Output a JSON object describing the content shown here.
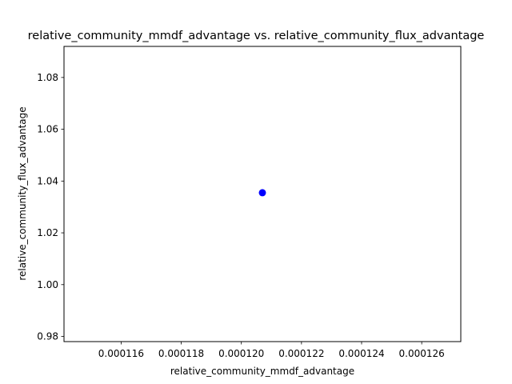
{
  "chart_data": {
    "type": "scatter",
    "title": "relative_community_mmdf_advantage vs. relative_community_flux_advantage",
    "xlabel": "relative_community_mmdf_advantage",
    "ylabel": "relative_community_flux_advantage",
    "xlim": [
      0.0001141,
      0.0001273
    ],
    "ylim": [
      0.978,
      1.092
    ],
    "xticks": [
      0.000116,
      0.000118,
      0.00012,
      0.000122,
      0.000124,
      0.000126
    ],
    "xtick_labels": [
      "0.000116",
      "0.000118",
      "0.000120",
      "0.000122",
      "0.000124",
      "0.000126"
    ],
    "yticks": [
      0.98,
      1.0,
      1.02,
      1.04,
      1.06,
      1.08
    ],
    "ytick_labels": [
      "0.98",
      "1.00",
      "1.02",
      "1.04",
      "1.06",
      "1.08"
    ],
    "points": [
      {
        "x": 0.0001207,
        "y": 1.0355
      }
    ],
    "marker_color": "#0000ff",
    "grid": false,
    "legend": false
  }
}
